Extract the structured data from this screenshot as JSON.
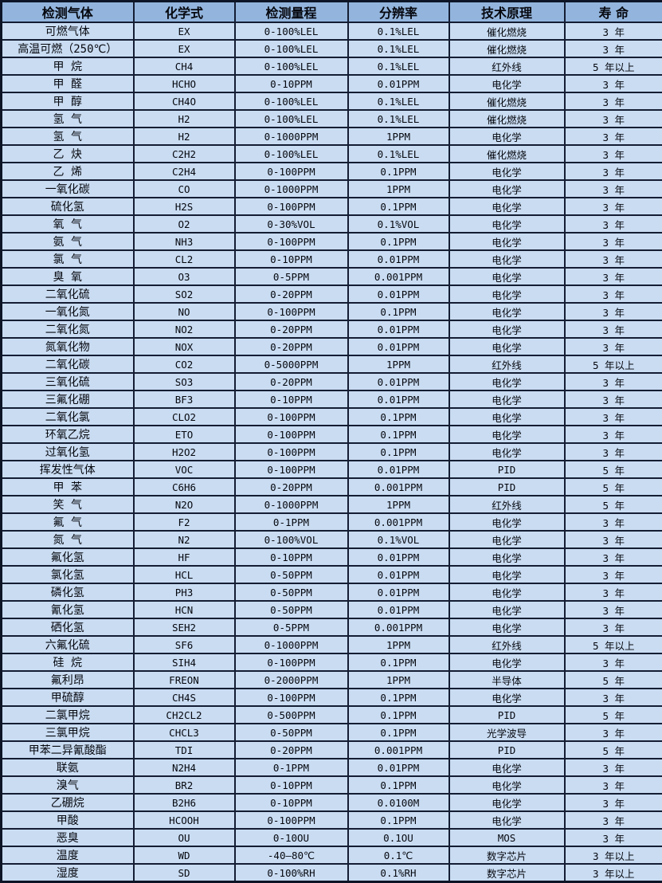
{
  "colors": {
    "header_bg": "#93b5dd",
    "row_bg": "#c9dcf2",
    "border": "#141d33",
    "border_outer": "#0d1526",
    "text": "#06080f"
  },
  "table": {
    "column_keys": [
      "gas-name",
      "chemical-formula",
      "detection-range",
      "resolution",
      "technology",
      "lifespan"
    ],
    "headers": [
      "检测气体",
      "化学式",
      "检测量程",
      "分辨率",
      "技术原理",
      "寿 命"
    ],
    "rows": [
      [
        "可燃气体",
        "EX",
        "0-100%LEL",
        "0.1%LEL",
        "催化燃烧",
        "3 年"
      ],
      [
        "高温可燃（250℃）",
        "EX",
        "0-100%LEL",
        "0.1%LEL",
        "催化燃烧",
        "3 年"
      ],
      [
        "甲 烷",
        "CH4",
        "0-100%LEL",
        "0.1%LEL",
        "红外线",
        "5 年以上"
      ],
      [
        "甲 醛",
        "HCHO",
        "0-10PPM",
        "0.01PPM",
        "电化学",
        "3 年"
      ],
      [
        "甲 醇",
        "CH4O",
        "0-100%LEL",
        "0.1%LEL",
        "催化燃烧",
        "3 年"
      ],
      [
        "氢 气",
        "H2",
        "0-100%LEL",
        "0.1%LEL",
        "催化燃烧",
        "3 年"
      ],
      [
        "氢 气",
        "H2",
        "0-1000PPM",
        "1PPM",
        "电化学",
        "3 年"
      ],
      [
        "乙 炔",
        "C2H2",
        "0-100%LEL",
        "0.1%LEL",
        "催化燃烧",
        "3 年"
      ],
      [
        "乙 烯",
        "C2H4",
        "0-100PPM",
        "0.1PPM",
        "电化学",
        "3 年"
      ],
      [
        "一氧化碳",
        "CO",
        "0-1000PPM",
        "1PPM",
        "电化学",
        "3 年"
      ],
      [
        "硫化氢",
        "H2S",
        "0-100PPM",
        "0.1PPM",
        "电化学",
        "3 年"
      ],
      [
        "氧 气",
        "O2",
        "0-30%VOL",
        "0.1%VOL",
        "电化学",
        "3 年"
      ],
      [
        "氨 气",
        "NH3",
        "0-100PPM",
        "0.1PPM",
        "电化学",
        "3 年"
      ],
      [
        "氯 气",
        "CL2",
        "0-10PPM",
        "0.01PPM",
        "电化学",
        "3 年"
      ],
      [
        "臭 氧",
        "O3",
        "0-5PPM",
        "0.001PPM",
        "电化学",
        "3 年"
      ],
      [
        "二氧化硫",
        "SO2",
        "0-20PPM",
        "0.01PPM",
        "电化学",
        "3 年"
      ],
      [
        "一氧化氮",
        "NO",
        "0-100PPM",
        "0.1PPM",
        "电化学",
        "3 年"
      ],
      [
        "二氧化氮",
        "NO2",
        "0-20PPM",
        "0.01PPM",
        "电化学",
        "3 年"
      ],
      [
        "氮氧化物",
        "NOX",
        "0-20PPM",
        "0.01PPM",
        "电化学",
        "3 年"
      ],
      [
        "二氧化碳",
        "CO2",
        "0-5000PPM",
        "1PPM",
        "红外线",
        "5 年以上"
      ],
      [
        "三氧化硫",
        "SO3",
        "0-20PPM",
        "0.01PPM",
        "电化学",
        "3 年"
      ],
      [
        "三氟化硼",
        "BF3",
        "0-10PPM",
        "0.01PPM",
        "电化学",
        "3 年"
      ],
      [
        "二氧化氯",
        "CLO2",
        "0-100PPM",
        "0.1PPM",
        "电化学",
        "3 年"
      ],
      [
        "环氧乙烷",
        "ETO",
        "0-100PPM",
        "0.1PPM",
        "电化学",
        "3 年"
      ],
      [
        "过氧化氢",
        "H2O2",
        "0-100PPM",
        "0.1PPM",
        "电化学",
        "3 年"
      ],
      [
        "挥发性气体",
        "VOC",
        "0-100PPM",
        "0.01PPM",
        "PID",
        "5 年"
      ],
      [
        "甲 苯",
        "C6H6",
        "0-20PPM",
        "0.001PPM",
        "PID",
        "5 年"
      ],
      [
        "笑 气",
        "N2O",
        "0-1000PPM",
        "1PPM",
        "红外线",
        "5 年"
      ],
      [
        "氟 气",
        "F2",
        "0-1PPM",
        "0.001PPM",
        "电化学",
        "3 年"
      ],
      [
        "氮 气",
        "N2",
        "0-100%VOL",
        "0.1%VOL",
        "电化学",
        "3 年"
      ],
      [
        "氟化氢",
        "HF",
        "0-10PPM",
        "0.01PPM",
        "电化学",
        "3 年"
      ],
      [
        "氯化氢",
        "HCL",
        "0-50PPM",
        "0.01PPM",
        "电化学",
        "3 年"
      ],
      [
        "磷化氢",
        "PH3",
        "0-50PPM",
        "0.01PPM",
        "电化学",
        "3 年"
      ],
      [
        "氰化氢",
        "HCN",
        "0-50PPM",
        "0.01PPM",
        "电化学",
        "3 年"
      ],
      [
        "硒化氢",
        "SEH2",
        "0-5PPM",
        "0.001PPM",
        "电化学",
        "3 年"
      ],
      [
        "六氟化硫",
        "SF6",
        "0-1000PPM",
        "1PPM",
        "红外线",
        "5 年以上"
      ],
      [
        "硅 烷",
        "SIH4",
        "0-100PPM",
        "0.1PPM",
        "电化学",
        "3 年"
      ],
      [
        "氟利昂",
        "FREON",
        "0-2000PPM",
        "1PPM",
        "半导体",
        "5 年"
      ],
      [
        "甲硫醇",
        "CH4S",
        "0-100PPM",
        "0.1PPM",
        "电化学",
        "3 年"
      ],
      [
        "二氯甲烷",
        "CH2CL2",
        "0-500PPM",
        "0.1PPM",
        "PID",
        "5 年"
      ],
      [
        "三氯甲烷",
        "CHCL3",
        "0-50PPM",
        "0.1PPM",
        "光学波导",
        "3 年"
      ],
      [
        "甲苯二异氰酸酯",
        "TDI",
        "0-20PPM",
        "0.001PPM",
        "PID",
        "5 年"
      ],
      [
        "联氨",
        "N2H4",
        "0-1PPM",
        "0.01PPM",
        "电化学",
        "3 年"
      ],
      [
        "溴气",
        "BR2",
        "0-10PPM",
        "0.1PPM",
        "电化学",
        "3 年"
      ],
      [
        "乙硼烷",
        "B2H6",
        "0-10PPM",
        "0.0100M",
        "电化学",
        "3 年"
      ],
      [
        "甲酸",
        "HCOOH",
        "0-100PPM",
        "0.1PPM",
        "电化学",
        "3 年"
      ],
      [
        "恶臭",
        "OU",
        "0-10OU",
        "0.1OU",
        "MOS",
        "3 年"
      ],
      [
        "温度",
        "WD",
        "-40—80℃",
        "0.1℃",
        "数字芯片",
        "3 年以上"
      ],
      [
        "湿度",
        "SD",
        "0-100%RH",
        "0.1%RH",
        "数字芯片",
        "3 年以上"
      ]
    ]
  }
}
